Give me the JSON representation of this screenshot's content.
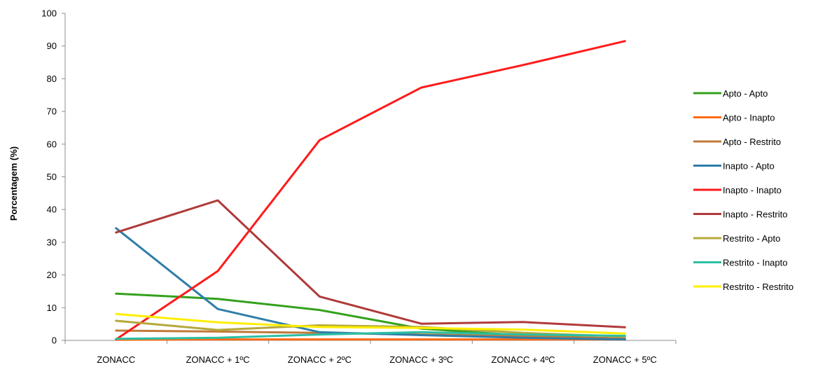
{
  "chart_data": {
    "type": "line",
    "title": "",
    "xlabel": "",
    "ylabel": "Porcentagem (%)",
    "ylim": [
      0,
      100
    ],
    "yticks": [
      0,
      10,
      20,
      30,
      40,
      50,
      60,
      70,
      80,
      90,
      100
    ],
    "grid": false,
    "legend_position": "right",
    "categories": [
      "ZONACC",
      "ZONACC + 1ºC",
      "ZONACC + 2ºC",
      "ZONACC + 3ºC",
      "ZONACC + 4ºC",
      "ZONACC + 5ºC"
    ],
    "series": [
      {
        "name": "Apto - Apto",
        "color": "#33a11c",
        "values": [
          14.3,
          12.7,
          9.3,
          3.6,
          1.5,
          0.5
        ]
      },
      {
        "name": "Apto - Inapto",
        "color": "#ff6a13",
        "values": [
          0.2,
          0.3,
          0.3,
          0.3,
          0.3,
          0.3
        ]
      },
      {
        "name": "Apto - Restrito",
        "color": "#c07a3a",
        "values": [
          3.0,
          2.7,
          2.3,
          1.8,
          1.3,
          0.6
        ]
      },
      {
        "name": "Inapto - Apto",
        "color": "#2e7ea8",
        "values": [
          34.3,
          9.6,
          2.5,
          1.6,
          0.8,
          0.3
        ]
      },
      {
        "name": "Inapto - Inapto",
        "color": "#ff1a1a",
        "values": [
          0.3,
          21.2,
          61.2,
          77.3,
          84.2,
          91.5
        ]
      },
      {
        "name": "Inapto - Restrito",
        "color": "#b03a3a",
        "values": [
          33.0,
          42.8,
          13.4,
          5.1,
          5.6,
          4.0
        ]
      },
      {
        "name": "Restrito - Apto",
        "color": "#b5a83a",
        "values": [
          6.0,
          3.2,
          4.6,
          4.1,
          2.3,
          1.2
        ]
      },
      {
        "name": "Restrito - Inapto",
        "color": "#2bbfa3",
        "values": [
          0.5,
          0.8,
          1.8,
          2.5,
          1.8,
          1.4
        ]
      },
      {
        "name": "Restrito - Restrito",
        "color": "#ffee00",
        "values": [
          8.1,
          5.5,
          4.1,
          3.8,
          3.3,
          2.1
        ]
      }
    ]
  }
}
